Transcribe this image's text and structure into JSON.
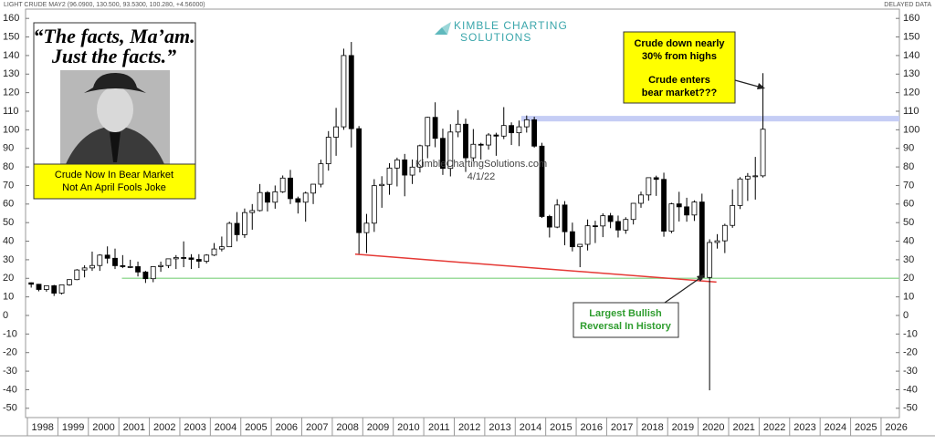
{
  "chart_data": {
    "type": "candlestick",
    "header": "LIGHT CRUDE MAY2 (96.0900, 130.500, 93.5300, 100.280, +4.56000)",
    "status": "DELAYED DATA",
    "logo": [
      "KIMBLE CHARTING",
      "SOLUTIONS"
    ],
    "watermark": "KimbleChartingSolutions.com",
    "date": "4/1/22",
    "quote": [
      "“The facts, Ma’am.",
      "Just the facts.”"
    ],
    "photo_caption": [
      "Crude Now In Bear Market",
      "Not An April Fools Joke"
    ],
    "top_note": [
      "Crude down nearly",
      "30% from highs",
      "Crude enters",
      "bear market???"
    ],
    "bottom_note": [
      "Largest Bullish",
      "Reversal In History"
    ],
    "up_color": "#ffffff",
    "down_color": "#000000",
    "x": [
      1998.125,
      1998.375,
      1998.625,
      1998.875,
      1999.125,
      1999.375,
      1999.625,
      1999.875,
      2000.125,
      2000.375,
      2000.625,
      2000.875,
      2001.125,
      2001.375,
      2001.625,
      2001.875,
      2002.125,
      2002.375,
      2002.625,
      2002.875,
      2003.125,
      2003.375,
      2003.625,
      2003.875,
      2004.125,
      2004.375,
      2004.625,
      2004.875,
      2005.125,
      2005.375,
      2005.625,
      2005.875,
      2006.125,
      2006.375,
      2006.625,
      2006.875,
      2007.125,
      2007.375,
      2007.625,
      2007.875,
      2008.125,
      2008.375,
      2008.625,
      2008.875,
      2009.125,
      2009.375,
      2009.625,
      2009.875,
      2010.125,
      2010.375,
      2010.625,
      2010.875,
      2011.125,
      2011.375,
      2011.625,
      2011.875,
      2012.125,
      2012.375,
      2012.625,
      2012.875,
      2013.125,
      2013.375,
      2013.625,
      2013.875,
      2014.125,
      2014.375,
      2014.625,
      2014.875,
      2015.125,
      2015.375,
      2015.625,
      2015.875,
      2016.125,
      2016.375,
      2016.625,
      2016.875,
      2017.125,
      2017.375,
      2017.625,
      2017.875,
      2018.125,
      2018.375,
      2018.625,
      2018.875,
      2019.125,
      2019.375,
      2019.625,
      2019.875,
      2020.125,
      2020.375,
      2020.625,
      2020.875,
      2021.125,
      2021.375,
      2021.625,
      2021.875,
      2022.125
    ],
    "open": [
      17.6,
      16.8,
      14,
      16,
      12,
      16.5,
      19.3,
      24.5,
      25.6,
      26.9,
      32.5,
      30.8,
      26.8,
      26.3,
      26.3,
      23.4,
      19.8,
      26.3,
      26.9,
      30.5,
      31.2,
      31,
      30.2,
      29.2,
      32.5,
      35.8,
      37,
      49.6,
      43.5,
      55.4,
      56.5,
      66.2,
      61,
      66.6,
      74,
      62.9,
      61,
      65.9,
      70.7,
      81.7,
      96,
      101.6,
      140,
      100.6,
      44.6,
      49.7,
      69.9,
      70.6,
      79.4,
      83.8,
      75.6,
      79.9,
      91.4,
      106.7,
      95.4,
      79.2,
      98.8,
      103,
      84.9,
      92.2,
      91.8,
      97.2,
      96.6,
      102.3,
      98.4,
      101.6,
      105.4,
      91.2,
      53.3,
      47.6,
      59.5,
      45.1,
      37,
      38.3,
      48.3,
      48.2,
      53.7,
      50.6,
      46,
      51.7,
      60.4,
      64.9,
      74.2,
      73.3,
      45.4,
      60.1,
      58.5,
      54.1,
      61.1,
      20.5,
      39.3,
      40.2,
      48.5,
      59.2,
      73.5,
      75,
      75.2
    ],
    "high": [
      17.8,
      17,
      16,
      16.5,
      16.5,
      19.5,
      25,
      27,
      34.4,
      33,
      37.2,
      36,
      32.5,
      30,
      29,
      24,
      26.5,
      29,
      30.5,
      32.5,
      39.9,
      33,
      33,
      33,
      39,
      42.5,
      50.5,
      55.7,
      57.6,
      60,
      70.8,
      67,
      70,
      75.4,
      78.4,
      64,
      66.7,
      70.7,
      83.9,
      99.3,
      111.8,
      143.7,
      147.3,
      102,
      54.7,
      73.4,
      75,
      82,
      85,
      87,
      84,
      92,
      107,
      114.8,
      100.6,
      103,
      110.6,
      106,
      100.4,
      93,
      98.2,
      98.4,
      112.2,
      104,
      105,
      107.7,
      107,
      93,
      54.2,
      62.6,
      61.6,
      50,
      38.4,
      51.7,
      51,
      55,
      55.2,
      53.8,
      52.9,
      60.5,
      66.7,
      72.9,
      75.3,
      76.9,
      60.7,
      66.6,
      63.4,
      62,
      65.6,
      41,
      43.8,
      49.4,
      67.9,
      74.5,
      76.7,
      85.4,
      130.5
    ],
    "low": [
      15,
      13,
      12.8,
      10.5,
      11.3,
      16,
      19,
      20.5,
      24,
      24,
      28,
      25,
      25.5,
      25.5,
      21,
      17.5,
      17.9,
      23.5,
      25.5,
      25,
      26,
      25,
      25.5,
      28,
      32,
      34.5,
      38,
      40,
      41.8,
      46.2,
      56,
      56,
      57.5,
      66,
      60,
      54.9,
      50.5,
      60,
      69,
      78,
      86,
      100,
      90.5,
      33.2,
      33.6,
      45,
      58,
      65,
      69.5,
      64.2,
      70.8,
      77,
      84.7,
      90.6,
      75.7,
      74.9,
      96,
      77.3,
      83,
      84,
      89.3,
      86,
      95,
      91.8,
      91.2,
      98.5,
      90.4,
      52.5,
      42,
      47,
      37.8,
      34.5,
      26,
      35,
      39,
      42.2,
      47,
      42,
      44,
      49,
      58,
      61.8,
      64.4,
      42.4,
      44.3,
      50.6,
      50.5,
      50.9,
      19.3,
      -40.3,
      36,
      33.6,
      47.2,
      57.3,
      61.7,
      62.4,
      74.3
    ],
    "close": [
      16.8,
      14,
      16,
      12,
      16.5,
      19.3,
      24.5,
      25.6,
      26.9,
      32.5,
      30.8,
      26.8,
      26.3,
      26.3,
      23.4,
      19.8,
      26.3,
      26.9,
      30.5,
      31.2,
      31,
      30.2,
      29.2,
      32.5,
      35.8,
      37,
      49.6,
      43.5,
      55.4,
      56.5,
      66.2,
      61,
      66.6,
      74,
      62.9,
      61,
      65.9,
      70.7,
      81.7,
      96,
      101.6,
      140,
      100.6,
      44.6,
      49.7,
      69.9,
      70.6,
      79.4,
      83.8,
      75.6,
      79.9,
      91.4,
      106.7,
      95.4,
      79.2,
      98.8,
      103,
      84.9,
      92.2,
      91.8,
      97.2,
      96.6,
      102.3,
      98.4,
      101.6,
      105.4,
      91.2,
      53.3,
      47.6,
      59.5,
      45.1,
      37,
      38.3,
      48.3,
      48.2,
      53.7,
      50.6,
      46,
      51.7,
      60.4,
      64.9,
      74.2,
      73.3,
      45.4,
      60.1,
      58.5,
      54.1,
      61.1,
      20.5,
      39.3,
      40.2,
      48.5,
      59.2,
      73.5,
      75,
      75.2,
      100.3
    ],
    "trendline": {
      "x": [
        2008.75,
        2020.6
      ],
      "y": [
        33,
        18
      ],
      "color": "#e53935"
    },
    "support": {
      "x0": 2001.1,
      "y": 20,
      "color": "#9ddc9d"
    },
    "resistance": {
      "x0": 2014.2,
      "y": [
        104.5,
        107.5
      ],
      "color": "#c5cdf5"
    },
    "xlim": [
      1997.94,
      2026.6
    ],
    "ylim": [
      -55,
      165
    ],
    "xticks": [
      1998,
      1999,
      2000,
      2001,
      2002,
      2003,
      2004,
      2005,
      2006,
      2007,
      2008,
      2009,
      2010,
      2011,
      2012,
      2013,
      2014,
      2015,
      2016,
      2017,
      2018,
      2019,
      2020,
      2021,
      2022,
      2023,
      2024,
      2025,
      2026
    ],
    "yticks": [
      -50,
      -40,
      -30,
      -20,
      -10,
      0,
      10,
      20,
      30,
      40,
      50,
      60,
      70,
      80,
      90,
      100,
      110,
      120,
      130,
      140,
      150,
      160
    ]
  }
}
